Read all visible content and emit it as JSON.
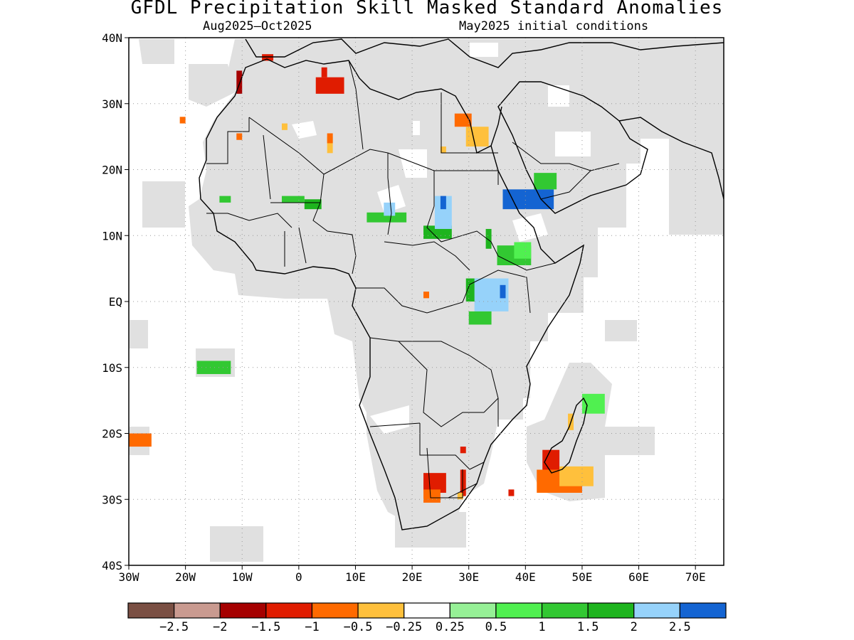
{
  "title": "GFDL Precipitation Skill Masked Standard Anomalies",
  "subtitle_left": "Aug2025–Oct2025",
  "subtitle_right": "May2025 initial conditions",
  "map": {
    "lon_range": [
      -30,
      75
    ],
    "lat_range": [
      -40,
      40
    ],
    "lon_ticks": [
      {
        "value": -30,
        "label": "30W"
      },
      {
        "value": -20,
        "label": "20W"
      },
      {
        "value": -10,
        "label": "10W"
      },
      {
        "value": 0,
        "label": "0"
      },
      {
        "value": 10,
        "label": "10E"
      },
      {
        "value": 20,
        "label": "20E"
      },
      {
        "value": 30,
        "label": "30E"
      },
      {
        "value": 40,
        "label": "40E"
      },
      {
        "value": 50,
        "label": "50E"
      },
      {
        "value": 60,
        "label": "60E"
      },
      {
        "value": 70,
        "label": "70E"
      }
    ],
    "lat_ticks": [
      {
        "value": 40,
        "label": "40N"
      },
      {
        "value": 30,
        "label": "30N"
      },
      {
        "value": 20,
        "label": "20N"
      },
      {
        "value": 10,
        "label": "10N"
      },
      {
        "value": 0,
        "label": "EQ"
      },
      {
        "value": -10,
        "label": "10S"
      },
      {
        "value": -20,
        "label": "20S"
      },
      {
        "value": -30,
        "label": "30S"
      },
      {
        "value": -40,
        "label": "40S"
      }
    ],
    "mask_color": "#e0e0e0",
    "anomaly_patches": [
      {
        "name": "morocco-north-red",
        "lon": -6.5,
        "lat": 36.5,
        "w": 2,
        "h": 1,
        "color": "#e01c00"
      },
      {
        "name": "morocco-red",
        "lon": -11,
        "lat": 31.5,
        "w": 1,
        "h": 3.5,
        "color": "#a50000"
      },
      {
        "name": "algeria-red",
        "lon": 3,
        "lat": 31.5,
        "w": 5,
        "h": 2.5,
        "color": "#e01c00"
      },
      {
        "name": "algeria-red-top",
        "lon": 4,
        "lat": 34,
        "w": 1,
        "h": 1.5,
        "color": "#e01c00"
      },
      {
        "name": "canary-orange",
        "lon": -21,
        "lat": 27,
        "w": 1,
        "h": 1,
        "color": "#ff6a00"
      },
      {
        "name": "wsahara-orange",
        "lon": -11,
        "lat": 24.5,
        "w": 1,
        "h": 1,
        "color": "#ff6a00"
      },
      {
        "name": "mauritania-yellow",
        "lon": -3,
        "lat": 26,
        "w": 1,
        "h": 1,
        "color": "#ffc03c"
      },
      {
        "name": "algeria-south-orange",
        "lon": 5,
        "lat": 22.5,
        "w": 1,
        "h": 2.5,
        "color": "#ffc03c"
      },
      {
        "name": "algeria-south-orange2",
        "lon": 5,
        "lat": 24,
        "w": 1,
        "h": 1.5,
        "color": "#ff6a00"
      },
      {
        "name": "egypt-orange",
        "lon": 27.5,
        "lat": 26.5,
        "w": 3,
        "h": 2,
        "color": "#ff6a00"
      },
      {
        "name": "egypt-yellow",
        "lon": 29.5,
        "lat": 23.5,
        "w": 4,
        "h": 3,
        "color": "#ffc03c"
      },
      {
        "name": "egypt-yellow2",
        "lon": 25,
        "lat": 22.5,
        "w": 1,
        "h": 1,
        "color": "#ffc03c"
      },
      {
        "name": "mali-green",
        "lon": -3,
        "lat": 15,
        "w": 4,
        "h": 1,
        "color": "#32c832"
      },
      {
        "name": "niger-green",
        "lon": 1,
        "lat": 14,
        "w": 3,
        "h": 1.5,
        "color": "#1eb41e"
      },
      {
        "name": "senegal-green",
        "lon": -14,
        "lat": 15,
        "w": 2,
        "h": 1,
        "color": "#32c832"
      },
      {
        "name": "chad-green",
        "lon": 12,
        "lat": 12,
        "w": 7,
        "h": 1.5,
        "color": "#32c832"
      },
      {
        "name": "chad-ltblue",
        "lon": 15,
        "lat": 13,
        "w": 2,
        "h": 2,
        "color": "#96d2fa"
      },
      {
        "name": "car-green",
        "lon": 22,
        "lat": 9.5,
        "w": 5,
        "h": 2,
        "color": "#1eb41e"
      },
      {
        "name": "sudan-ltblue",
        "lon": 24,
        "lat": 11,
        "w": 3,
        "h": 5,
        "color": "#96d2fa"
      },
      {
        "name": "sudan-blue",
        "lon": 25,
        "lat": 14,
        "w": 1,
        "h": 2,
        "color": "#1464d2"
      },
      {
        "name": "eritrea-blue",
        "lon": 36,
        "lat": 14,
        "w": 9,
        "h": 3,
        "color": "#1464d2"
      },
      {
        "name": "yemen-green",
        "lon": 41.5,
        "lat": 17,
        "w": 4,
        "h": 2.5,
        "color": "#32c832"
      },
      {
        "name": "ssudan-green",
        "lon": 33,
        "lat": 8,
        "w": 1,
        "h": 3,
        "color": "#1eb41e"
      },
      {
        "name": "ethiopia-green",
        "lon": 35,
        "lat": 5.5,
        "w": 6,
        "h": 3,
        "color": "#32c832"
      },
      {
        "name": "ethiopia-ltgreen",
        "lon": 38,
        "lat": 6.5,
        "w": 3,
        "h": 2.5,
        "color": "#50f050"
      },
      {
        "name": "uganda-green",
        "lon": 29.5,
        "lat": 0,
        "w": 4,
        "h": 3.5,
        "color": "#1eb41e"
      },
      {
        "name": "kenya-ltblue",
        "lon": 31,
        "lat": -1.5,
        "w": 6,
        "h": 5,
        "color": "#96d2fa"
      },
      {
        "name": "kenya-blue",
        "lon": 35.5,
        "lat": 0.5,
        "w": 1,
        "h": 2,
        "color": "#1464d2"
      },
      {
        "name": "tanzania-green",
        "lon": 30,
        "lat": -3.5,
        "w": 4,
        "h": 2,
        "color": "#32c832"
      },
      {
        "name": "congo-orange",
        "lon": 22,
        "lat": 0.5,
        "w": 1,
        "h": 1,
        "color": "#ff6a00"
      },
      {
        "name": "atlantic-green",
        "lon": -18,
        "lat": -11,
        "w": 6,
        "h": 2,
        "color": "#32c832"
      },
      {
        "name": "stlantic-orange",
        "lon": -30,
        "lat": -22,
        "w": 4,
        "h": 2,
        "color": "#ff6a00"
      },
      {
        "name": "madagascar-green",
        "lon": 50,
        "lat": -17,
        "w": 4,
        "h": 3,
        "color": "#50f050"
      },
      {
        "name": "madagascar-orange",
        "lon": 47.5,
        "lat": -19.5,
        "w": 1,
        "h": 2.5,
        "color": "#ffc03c"
      },
      {
        "name": "madagascar-south-red",
        "lon": 43,
        "lat": -25.5,
        "w": 3,
        "h": 3,
        "color": "#e01c00"
      },
      {
        "name": "madagascar-south-orange",
        "lon": 42,
        "lat": -29,
        "w": 8,
        "h": 3.5,
        "color": "#ff6a00"
      },
      {
        "name": "madagascar-south-yellow",
        "lon": 46,
        "lat": -28,
        "w": 6,
        "h": 3,
        "color": "#ffc03c"
      },
      {
        "name": "safrica-red",
        "lon": 22,
        "lat": -29,
        "w": 4,
        "h": 3,
        "color": "#e01c00"
      },
      {
        "name": "safrica-orange",
        "lon": 22,
        "lat": -30.5,
        "w": 3,
        "h": 2,
        "color": "#ff6a00"
      },
      {
        "name": "safrica-red2",
        "lon": 28.5,
        "lat": -29.5,
        "w": 1,
        "h": 4,
        "color": "#e01c00"
      },
      {
        "name": "safrica-red3",
        "lon": 28.5,
        "lat": -23,
        "w": 1,
        "h": 1,
        "color": "#e01c00"
      },
      {
        "name": "safrica-orange2",
        "lon": 28,
        "lat": -30,
        "w": 1,
        "h": 1,
        "color": "#ffc03c"
      },
      {
        "name": "mozambique-red",
        "lon": 37,
        "lat": -29.5,
        "w": 1,
        "h": 1,
        "color": "#e01c00"
      }
    ]
  },
  "colorbar": {
    "colors": [
      "#7a4f43",
      "#c99a90",
      "#a50000",
      "#e01c00",
      "#ff6a00",
      "#ffc03c",
      "#ffffff",
      "#96f096",
      "#50f050",
      "#32c832",
      "#1eb41e",
      "#96d2fa",
      "#1464d2"
    ],
    "labels": [
      "−2.5",
      "−2",
      "−1.5",
      "−1",
      "−0.5",
      "−0.25",
      "0.25",
      "0.5",
      "1",
      "1.5",
      "2",
      "2.5"
    ]
  }
}
